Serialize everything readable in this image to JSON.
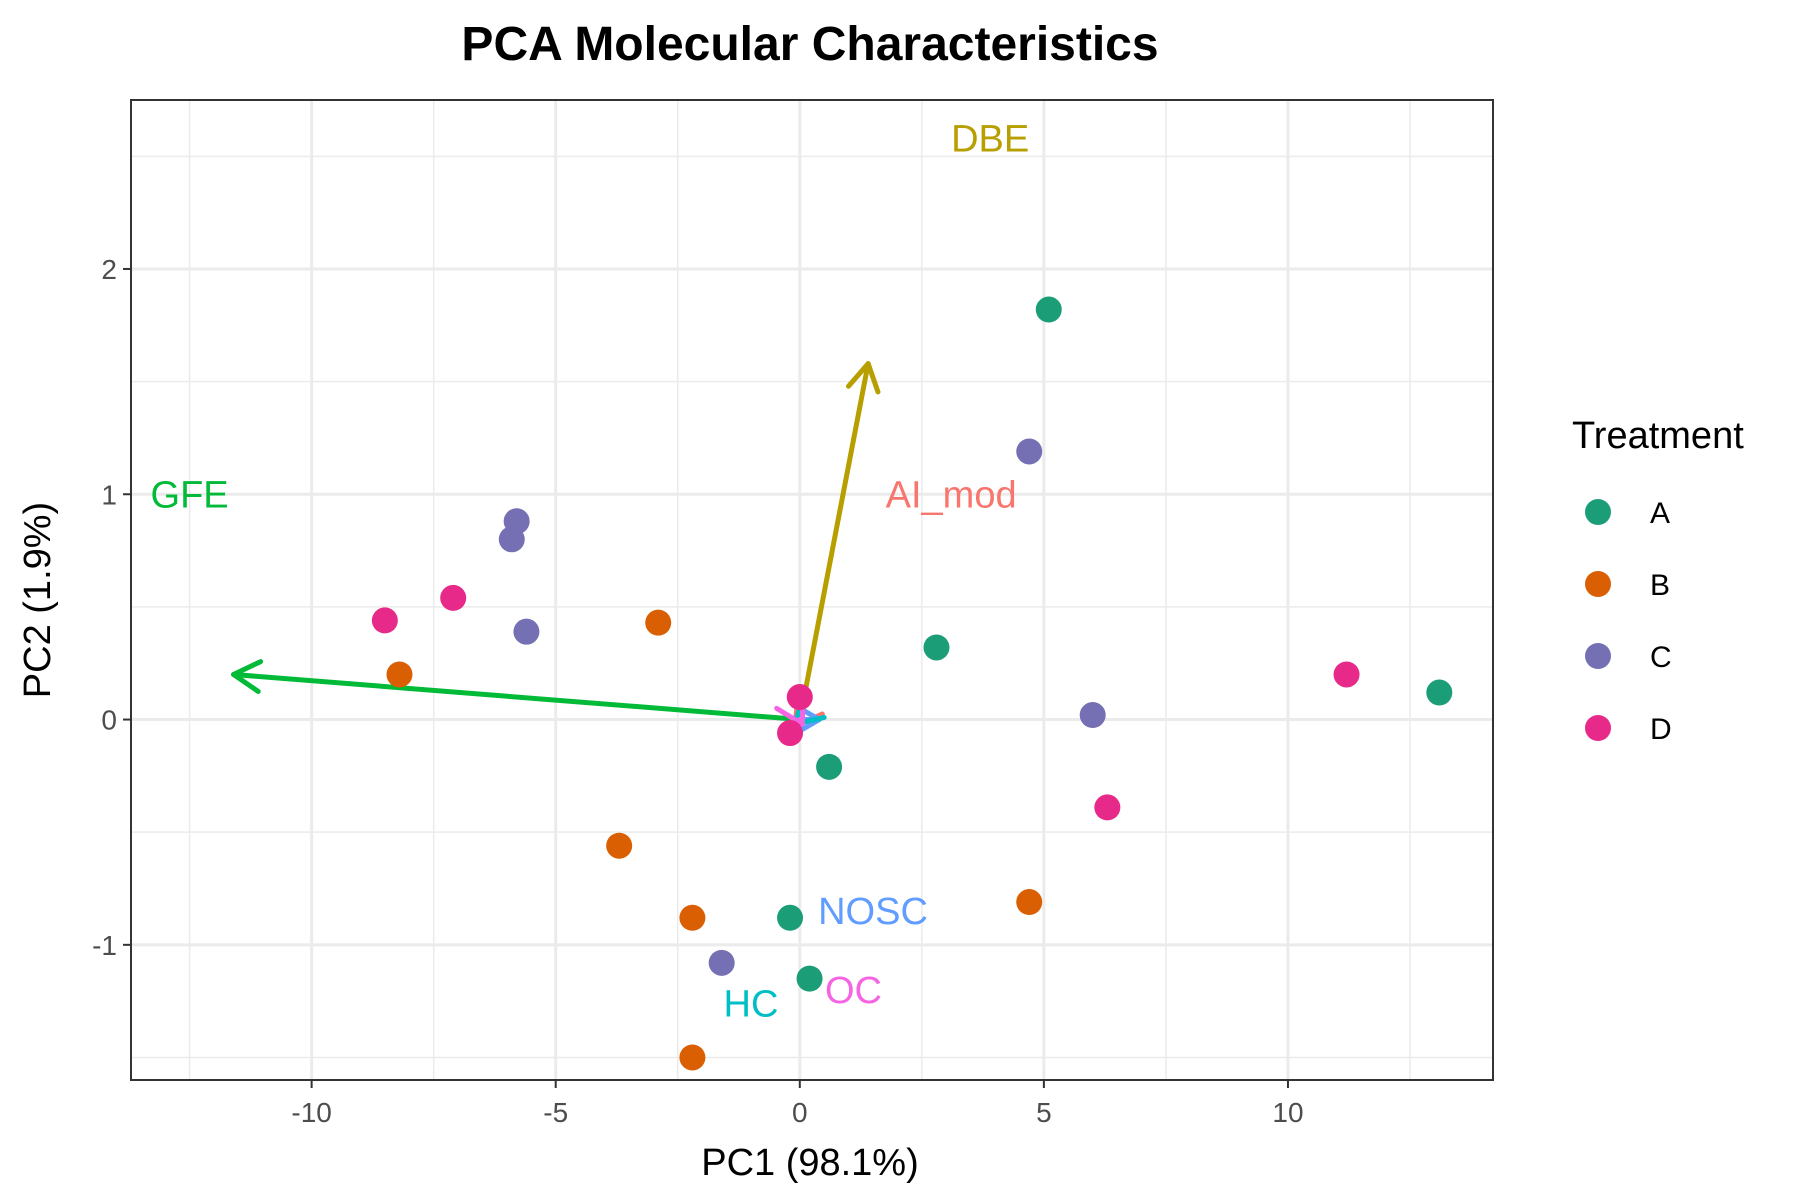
{
  "chart_data": {
    "type": "scatter",
    "title": "PCA Molecular Characteristics",
    "xlabel": "PC1 (98.1%)",
    "ylabel": "PC2 (1.9%)",
    "xlim": [
      -13.7,
      14.2
    ],
    "ylim": [
      -1.6,
      2.75
    ],
    "x_ticks": [
      -10,
      -5,
      0,
      5,
      10
    ],
    "y_ticks": [
      -1,
      0,
      1,
      2
    ],
    "x_tick_labels": [
      "-10",
      "-5",
      "0",
      "5",
      "10"
    ],
    "y_tick_labels": [
      "-1",
      "0",
      "1",
      "2"
    ],
    "grid": true,
    "legend": {
      "title": "Treatment",
      "position": "right",
      "entries": [
        {
          "name": "A",
          "color": "#1b9e77"
        },
        {
          "name": "B",
          "color": "#d95f02"
        },
        {
          "name": "C",
          "color": "#7570b3"
        },
        {
          "name": "D",
          "color": "#e7298a"
        }
      ]
    },
    "series": [
      {
        "name": "A",
        "color": "#1b9e77",
        "points": [
          [
            5.1,
            1.82
          ],
          [
            2.8,
            0.32
          ],
          [
            13.1,
            0.12
          ],
          [
            0.6,
            -0.21
          ],
          [
            -0.2,
            -0.88
          ],
          [
            0.2,
            -1.15
          ]
        ]
      },
      {
        "name": "B",
        "color": "#d95f02",
        "points": [
          [
            -8.2,
            0.2
          ],
          [
            -2.9,
            0.43
          ],
          [
            -3.7,
            -0.56
          ],
          [
            -2.2,
            -0.88
          ],
          [
            4.7,
            -0.81
          ],
          [
            -2.2,
            -1.5
          ]
        ]
      },
      {
        "name": "C",
        "color": "#7570b3",
        "points": [
          [
            -5.8,
            0.88
          ],
          [
            -5.9,
            0.8
          ],
          [
            -5.6,
            0.39
          ],
          [
            4.7,
            1.19
          ],
          [
            6.0,
            0.02
          ],
          [
            -1.6,
            -1.08
          ]
        ]
      },
      {
        "name": "D",
        "color": "#e7298a",
        "points": [
          [
            -8.5,
            0.44
          ],
          [
            -7.1,
            0.54
          ],
          [
            0.0,
            0.1
          ],
          [
            -0.2,
            -0.06
          ],
          [
            11.2,
            0.2
          ],
          [
            6.3,
            -0.39
          ]
        ]
      }
    ],
    "loadings": [
      {
        "name": "GFE",
        "color": "#00ba38",
        "end": [
          -11.6,
          0.2
        ],
        "label_at": [
          -12.5,
          1.0
        ]
      },
      {
        "name": "DBE",
        "color": "#b79f00",
        "end": [
          1.4,
          1.58
        ],
        "label_at": [
          3.9,
          2.58
        ]
      },
      {
        "name": "AI_mod",
        "color": "#f8766d",
        "end": [
          -0.1,
          -0.03
        ],
        "label_at": [
          3.1,
          1.0
        ]
      },
      {
        "name": "NOSC",
        "color": "#619cff",
        "end": [
          0.4,
          0.0
        ],
        "label_at": [
          1.5,
          -0.85
        ]
      },
      {
        "name": "HC",
        "color": "#00bfc4",
        "end": [
          -0.1,
          -0.02
        ],
        "label_at": [
          -1.0,
          -1.26
        ]
      },
      {
        "name": "OC",
        "color": "#f564e3",
        "end": [
          0.05,
          -0.02
        ],
        "label_at": [
          1.1,
          -1.2
        ]
      }
    ]
  }
}
